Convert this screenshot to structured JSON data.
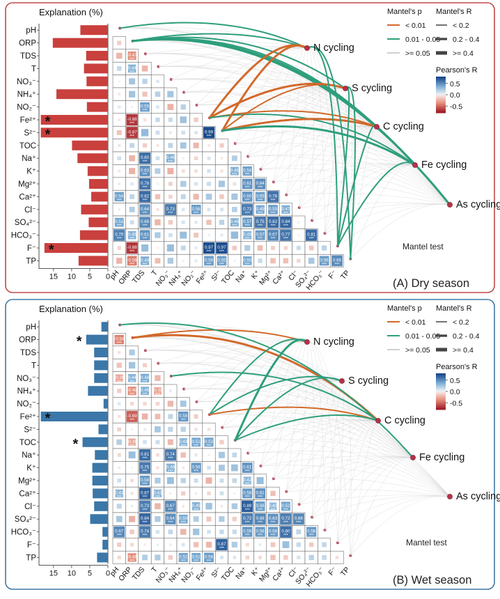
{
  "variables": [
    "pH",
    "ORP",
    "TDS",
    "T",
    "NO₃⁻",
    "NH₄⁺",
    "NO₂⁻",
    "Fe²⁺",
    "S²⁻",
    "TOC",
    "Na⁺",
    "K⁺",
    "Mg²⁺",
    "Ca²⁺",
    "Cl⁻",
    "SO₄²⁻",
    "HCO₃⁻",
    "F⁻",
    "TP"
  ],
  "cycles": [
    "N cycling",
    "S cycling",
    "C cycling",
    "Fe cycling",
    "As cycling"
  ],
  "legend": {
    "mantel_p_title": "Mantel's p",
    "mantel_p_items": [
      "< 0.01",
      "0.01 - 0.05",
      ">= 0.05"
    ],
    "mantel_r_title": "Mantel's R",
    "mantel_r_items": [
      "< 0.2",
      "0.2 - 0.4",
      ">= 0.4"
    ],
    "pearson_title": "Pearson's R",
    "pearson_ticks": [
      "0.5",
      "0.0",
      "-0.5"
    ],
    "colors": {
      "p_lt_001": "#d2692a",
      "p_001_005": "#2e9e7c",
      "p_ge_005": "#cfcfcf",
      "pos": "#2c6fab",
      "neg": "#c9403d"
    }
  },
  "mantel_label": "Mantel test",
  "chart_data": [
    {
      "type": "bar",
      "panel_label": "(A) Dry season",
      "xlabel": "Explanation (%)",
      "xticks": [
        15,
        10,
        5,
        0
      ],
      "xlim": [
        0,
        19
      ],
      "bar_color": "#c9403d",
      "border_color": "#c0494a",
      "categories": [
        "pH",
        "ORP",
        "TDS",
        "T",
        "NO₃⁻",
        "NH₄⁺",
        "NO₂⁻",
        "Fe²⁺",
        "S²⁻",
        "TOC",
        "Na⁺",
        "K⁺",
        "Mg²⁺",
        "Ca²⁺",
        "Cl⁻",
        "SO₄²⁻",
        "HCO₃⁻",
        "F⁻",
        "TP"
      ],
      "values": [
        7.6,
        15.2,
        6.0,
        6.6,
        5.9,
        14.2,
        5.8,
        18.5,
        18.5,
        9.9,
        8.4,
        5.6,
        5.2,
        4.6,
        7.4,
        5.3,
        7.7,
        17.5,
        8.1
      ],
      "significant": [
        false,
        false,
        false,
        false,
        false,
        false,
        false,
        true,
        true,
        false,
        false,
        false,
        false,
        false,
        false,
        false,
        false,
        true,
        false
      ],
      "correlations": [
        {
          "r": 2,
          "c": 1,
          "v": -0.47,
          "label": "-0.47"
        },
        {
          "r": 3,
          "c": 1,
          "v": 0.44,
          "label": "0.44"
        },
        {
          "r": 6,
          "c": 2,
          "v": 0.55,
          "label": "0.55"
        },
        {
          "r": 7,
          "c": 1,
          "v": -0.88,
          "label": "-0.88"
        },
        {
          "r": 8,
          "c": 1,
          "v": -0.87,
          "label": "-0.87"
        },
        {
          "r": 8,
          "c": 7,
          "v": 0.99,
          "label": "0.99"
        },
        {
          "r": 10,
          "c": 2,
          "v": 0.8,
          "label": "0.80"
        },
        {
          "r": 10,
          "c": 4,
          "v": 0.46,
          "label": "0.46"
        },
        {
          "r": 11,
          "c": 2,
          "v": 0.63,
          "label": "0.63"
        },
        {
          "r": 11,
          "c": 9,
          "v": 0.46,
          "label": "0.46"
        },
        {
          "r": 11,
          "c": 10,
          "v": 0.54,
          "label": "0.54"
        },
        {
          "r": 12,
          "c": 2,
          "v": 0.78,
          "label": "0.78"
        },
        {
          "r": 12,
          "c": 10,
          "v": 0.61,
          "label": "0.61"
        },
        {
          "r": 12,
          "c": 11,
          "v": 0.64,
          "label": "0.64"
        },
        {
          "r": 13,
          "c": 0,
          "v": 0.54,
          "label": "0.54"
        },
        {
          "r": 13,
          "c": 2,
          "v": 0.82,
          "label": "0.82"
        },
        {
          "r": 13,
          "c": 10,
          "v": 0.6,
          "label": "0.60"
        },
        {
          "r": 13,
          "c": 11,
          "v": 0.55,
          "label": "0.55"
        },
        {
          "r": 13,
          "c": 12,
          "v": 0.78,
          "label": "0.78"
        },
        {
          "r": 14,
          "c": 2,
          "v": 0.64,
          "label": "0.64"
        },
        {
          "r": 14,
          "c": 4,
          "v": 0.73,
          "label": "0.73"
        },
        {
          "r": 14,
          "c": 6,
          "v": 0.56,
          "label": "0.56"
        },
        {
          "r": 14,
          "c": 10,
          "v": 0.73,
          "label": "0.73"
        },
        {
          "r": 14,
          "c": 11,
          "v": 0.49,
          "label": "0.49"
        },
        {
          "r": 14,
          "c": 12,
          "v": 0.55,
          "label": "0.55"
        },
        {
          "r": 14,
          "c": 13,
          "v": 0.47,
          "label": "0.47"
        },
        {
          "r": 15,
          "c": 0,
          "v": 0.51,
          "label": "0.51"
        },
        {
          "r": 15,
          "c": 2,
          "v": 0.66,
          "label": "0.66"
        },
        {
          "r": 15,
          "c": 9,
          "v": 0.46,
          "label": "0.46"
        },
        {
          "r": 15,
          "c": 10,
          "v": 0.57,
          "label": "0.57"
        },
        {
          "r": 15,
          "c": 11,
          "v": 0.75,
          "label": "0.75"
        },
        {
          "r": 15,
          "c": 12,
          "v": 0.82,
          "label": "0.82"
        },
        {
          "r": 15,
          "c": 13,
          "v": 0.84,
          "label": "0.84"
        },
        {
          "r": 16,
          "c": 0,
          "v": 0.7,
          "label": "0.70"
        },
        {
          "r": 16,
          "c": 1,
          "v": 0.45,
          "label": "0.45"
        },
        {
          "r": 16,
          "c": 2,
          "v": 0.61,
          "label": "0.61"
        },
        {
          "r": 16,
          "c": 10,
          "v": 0.45,
          "label": "0.45"
        },
        {
          "r": 16,
          "c": 11,
          "v": 0.57,
          "label": "0.57"
        },
        {
          "r": 16,
          "c": 12,
          "v": 0.67,
          "label": "0.67"
        },
        {
          "r": 16,
          "c": 13,
          "v": 0.77,
          "label": "0.77"
        },
        {
          "r": 16,
          "c": 15,
          "v": 0.81,
          "label": "0.81"
        },
        {
          "r": 17,
          "c": 1,
          "v": -0.88,
          "label": "-0.88"
        },
        {
          "r": 17,
          "c": 7,
          "v": 0.97,
          "label": "0.97"
        },
        {
          "r": 17,
          "c": 8,
          "v": 0.97,
          "label": "0.97"
        },
        {
          "r": 18,
          "c": 1,
          "v": -0.56,
          "label": "-0.56"
        },
        {
          "r": 18,
          "c": 2,
          "v": 0.48,
          "label": "0.48"
        },
        {
          "r": 18,
          "c": 7,
          "v": 0.56,
          "label": "0.56"
        },
        {
          "r": 18,
          "c": 8,
          "v": 0.55,
          "label": "0.55"
        },
        {
          "r": 18,
          "c": 10,
          "v": 0.5,
          "label": "0.50"
        },
        {
          "r": 18,
          "c": 16,
          "v": 0.56,
          "label": "0.56"
        },
        {
          "r": 18,
          "c": 17,
          "v": 0.66,
          "label": "0.66"
        }
      ],
      "links": [
        {
          "from": 1,
          "to": 0,
          "p": "mid",
          "w": 2
        },
        {
          "from": 1,
          "to": 1,
          "p": "mid",
          "w": 2
        },
        {
          "from": 1,
          "to": 2,
          "p": "mid",
          "w": 2
        },
        {
          "from": 1,
          "to": 3,
          "p": "mid",
          "w": 3
        },
        {
          "from": 1,
          "to": 4,
          "p": "mid",
          "w": 3
        },
        {
          "from": 0,
          "to": 0,
          "p": "mid",
          "w": 2
        },
        {
          "from": 7,
          "to": 0,
          "p": "low",
          "w": 3
        },
        {
          "from": 7,
          "to": 1,
          "p": "low",
          "w": 3
        },
        {
          "from": 7,
          "to": 2,
          "p": "low",
          "w": 2
        },
        {
          "from": 7,
          "to": 3,
          "p": "mid",
          "w": 2
        },
        {
          "from": 8,
          "to": 0,
          "p": "low",
          "w": 3
        },
        {
          "from": 8,
          "to": 1,
          "p": "low",
          "w": 2
        },
        {
          "from": 8,
          "to": 2,
          "p": "low",
          "w": 3
        },
        {
          "from": 8,
          "to": 3,
          "p": "mid",
          "w": 3
        },
        {
          "from": 17,
          "to": 0,
          "p": "mid",
          "w": 2
        },
        {
          "from": 17,
          "to": 1,
          "p": "mid",
          "w": 2
        },
        {
          "from": 17,
          "to": 2,
          "p": "mid",
          "w": 2
        },
        {
          "from": 17,
          "to": 3,
          "p": "mid",
          "w": 2
        },
        {
          "from": 18,
          "to": 0,
          "p": "mid",
          "w": 2
        },
        {
          "from": 18,
          "to": 1,
          "p": "mid",
          "w": 2
        }
      ]
    },
    {
      "type": "bar",
      "panel_label": "(B) Wet season",
      "xlabel": "Explanation (%)",
      "xticks": [
        15,
        10,
        5,
        0
      ],
      "xlim": [
        0,
        19
      ],
      "bar_color": "#3b77a8",
      "border_color": "#3f79a6",
      "categories": [
        "pH",
        "ORP",
        "TDS",
        "T",
        "NO₃⁻",
        "NH₄⁺",
        "NO₂⁻",
        "Fe²⁺",
        "S²⁻",
        "TOC",
        "Na⁺",
        "K⁺",
        "Mg²⁺",
        "Ca²⁺",
        "Cl⁻",
        "SO₄²⁻",
        "HCO₃⁻",
        "F⁻",
        "TP"
      ],
      "values": [
        1.8,
        6.0,
        3.8,
        3.8,
        3.8,
        5.5,
        1.2,
        18.5,
        2.6,
        7.0,
        3.6,
        4.3,
        4.3,
        4.2,
        3.8,
        4.9,
        1.5,
        1.5,
        3.0
      ],
      "significant": [
        false,
        true,
        false,
        false,
        false,
        false,
        false,
        true,
        false,
        true,
        false,
        false,
        false,
        false,
        false,
        false,
        false,
        false,
        false
      ],
      "correlations": [
        {
          "r": 1,
          "c": 0,
          "v": -0.54,
          "label": "-0.54"
        },
        {
          "r": 4,
          "c": 0,
          "v": -0.39,
          "label": "-0.39"
        },
        {
          "r": 4,
          "c": 1,
          "v": 0.44,
          "label": "0.44"
        },
        {
          "r": 4,
          "c": 2,
          "v": 0.48,
          "label": "0.48"
        },
        {
          "r": 5,
          "c": 1,
          "v": -0.48,
          "label": "-0.48"
        },
        {
          "r": 5,
          "c": 2,
          "v": 0.46,
          "label": "0.46"
        },
        {
          "r": 5,
          "c": 3,
          "v": -0.39,
          "label": "-0.39"
        },
        {
          "r": 7,
          "c": 1,
          "v": -0.69,
          "label": "-0.69"
        },
        {
          "r": 7,
          "c": 5,
          "v": 0.59,
          "label": "0.59"
        },
        {
          "r": 9,
          "c": 1,
          "v": -0.38,
          "label": "-0.38"
        },
        {
          "r": 9,
          "c": 5,
          "v": 0.43,
          "label": "0.43"
        },
        {
          "r": 9,
          "c": 6,
          "v": 0.51,
          "label": "0.51"
        },
        {
          "r": 9,
          "c": 7,
          "v": 0.52,
          "label": "0.52"
        },
        {
          "r": 10,
          "c": 2,
          "v": 0.81,
          "label": "0.81"
        },
        {
          "r": 10,
          "c": 4,
          "v": 0.74,
          "label": "0.74"
        },
        {
          "r": 11,
          "c": 2,
          "v": 0.75,
          "label": "0.75"
        },
        {
          "r": 11,
          "c": 4,
          "v": 0.46,
          "label": "0.46"
        },
        {
          "r": 11,
          "c": 6,
          "v": 0.59,
          "label": "0.59"
        },
        {
          "r": 11,
          "c": 10,
          "v": 0.61,
          "label": "0.61"
        },
        {
          "r": 12,
          "c": 2,
          "v": 0.58,
          "label": "0.58"
        },
        {
          "r": 12,
          "c": 10,
          "v": 0.42,
          "label": "0.42"
        },
        {
          "r": 13,
          "c": 0,
          "v": 0.43,
          "label": "0.43"
        },
        {
          "r": 13,
          "c": 2,
          "v": 0.87,
          "label": "0.87"
        },
        {
          "r": 13,
          "c": 3,
          "v": 0.42,
          "label": "0.42"
        },
        {
          "r": 13,
          "c": 10,
          "v": 0.58,
          "label": "0.58"
        },
        {
          "r": 13,
          "c": 11,
          "v": 0.61,
          "label": "0.61"
        },
        {
          "r": 14,
          "c": 2,
          "v": 0.73,
          "label": "0.73"
        },
        {
          "r": 14,
          "c": 4,
          "v": 0.67,
          "label": "0.67"
        },
        {
          "r": 14,
          "c": 6,
          "v": 0.45,
          "label": "0.45"
        },
        {
          "r": 14,
          "c": 10,
          "v": 0.89,
          "label": "0.89"
        },
        {
          "r": 14,
          "c": 11,
          "v": 0.56,
          "label": "0.56"
        },
        {
          "r": 14,
          "c": 12,
          "v": 0.4,
          "label": "0.40"
        },
        {
          "r": 14,
          "c": 13,
          "v": 0.52,
          "label": "0.52"
        },
        {
          "r": 15,
          "c": 2,
          "v": 0.84,
          "label": "0.84"
        },
        {
          "r": 15,
          "c": 4,
          "v": 0.64,
          "label": "0.64"
        },
        {
          "r": 15,
          "c": 5,
          "v": 0.5,
          "label": "0.50"
        },
        {
          "r": 15,
          "c": 10,
          "v": 0.72,
          "label": "0.72"
        },
        {
          "r": 15,
          "c": 11,
          "v": 0.68,
          "label": "0.68"
        },
        {
          "r": 15,
          "c": 12,
          "v": 0.63,
          "label": "0.63"
        },
        {
          "r": 15,
          "c": 13,
          "v": 0.72,
          "label": "0.72"
        },
        {
          "r": 15,
          "c": 14,
          "v": 0.68,
          "label": "0.68"
        },
        {
          "r": 16,
          "c": 0,
          "v": 0.67,
          "label": "0.67"
        },
        {
          "r": 16,
          "c": 2,
          "v": 0.74,
          "label": "0.74"
        },
        {
          "r": 16,
          "c": 10,
          "v": 0.59,
          "label": "0.59"
        },
        {
          "r": 16,
          "c": 11,
          "v": 0.58,
          "label": "0.58"
        },
        {
          "r": 16,
          "c": 12,
          "v": 0.58,
          "label": "0.58"
        },
        {
          "r": 16,
          "c": 13,
          "v": 0.8,
          "label": "0.80"
        },
        {
          "r": 16,
          "c": 15,
          "v": 0.58,
          "label": "0.58"
        },
        {
          "r": 17,
          "c": 8,
          "v": 0.87,
          "label": "0.87"
        },
        {
          "r": 18,
          "c": 1,
          "v": -0.48,
          "label": "-0.48"
        },
        {
          "r": 18,
          "c": 5,
          "v": 0.52,
          "label": "0.52"
        },
        {
          "r": 18,
          "c": 6,
          "v": 0.51,
          "label": "0.51"
        },
        {
          "r": 18,
          "c": 7,
          "v": 0.56,
          "label": "0.56"
        }
      ],
      "links": [
        {
          "from": 1,
          "to": 0,
          "p": "low",
          "w": 2
        },
        {
          "from": 1,
          "to": 2,
          "p": "low",
          "w": 3
        },
        {
          "from": 0,
          "to": 3,
          "p": "mid",
          "w": 2
        },
        {
          "from": 7,
          "to": 0,
          "p": "mid",
          "w": 2
        },
        {
          "from": 7,
          "to": 1,
          "p": "mid",
          "w": 2
        },
        {
          "from": 7,
          "to": 2,
          "p": "low",
          "w": 2
        },
        {
          "from": 9,
          "to": 0,
          "p": "mid",
          "w": 3
        },
        {
          "from": 9,
          "to": 1,
          "p": "mid",
          "w": 2
        },
        {
          "from": 9,
          "to": 2,
          "p": "mid",
          "w": 2
        },
        {
          "from": 4,
          "to": 2,
          "p": "mid",
          "w": 2
        }
      ]
    }
  ]
}
